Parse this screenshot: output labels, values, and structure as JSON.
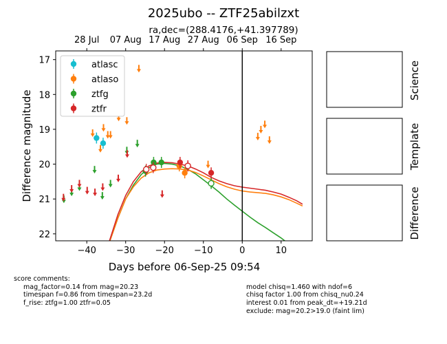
{
  "title": "2025ubo -- ZTF25abilzxt",
  "subtitle": "ra,dec=(288.4176,+41.397789)",
  "chart_data": {
    "type": "scatter",
    "xlabel": "Days before 06-Sep-25 09:54",
    "ylabel": "Difference magnitude",
    "xlim": [
      -48,
      18
    ],
    "ylim": [
      22.2,
      16.75
    ],
    "y_inverted": true,
    "x_ticks": [
      -40,
      -30,
      -20,
      -10,
      0,
      10
    ],
    "y_ticks": [
      17,
      18,
      19,
      20,
      21,
      22
    ],
    "top_axis_dates": [
      {
        "label": "28 Jul",
        "x": -40
      },
      {
        "label": "07 Aug",
        "x": -30
      },
      {
        "label": "17 Aug",
        "x": -20
      },
      {
        "label": "27 Aug",
        "x": -10
      },
      {
        "label": "06 Sep",
        "x": 0
      },
      {
        "label": "16 Sep",
        "x": 10
      }
    ],
    "vline_x": 0,
    "legend_position": "upper-left",
    "grid": false,
    "series": [
      {
        "name": "atlasc",
        "color": "#17becf",
        "detections": [
          {
            "x": -37.5,
            "y": 19.25
          },
          {
            "x": -35.8,
            "y": 19.4
          }
        ],
        "upper_limits": []
      },
      {
        "name": "atlaso",
        "color": "#ff7f0e",
        "detections": [
          {
            "x": -16.2,
            "y": 20.05
          },
          {
            "x": -14.8,
            "y": 20.25
          }
        ],
        "upper_limits": [
          {
            "x": -38.5,
            "y": 19.1
          },
          {
            "x": -36.5,
            "y": 19.55
          },
          {
            "x": -35.7,
            "y": 18.95
          },
          {
            "x": -34.6,
            "y": 19.15
          },
          {
            "x": -33.9,
            "y": 19.15
          },
          {
            "x": -31.8,
            "y": 18.65
          },
          {
            "x": -29.7,
            "y": 18.75
          },
          {
            "x": -26.6,
            "y": 17.25
          },
          {
            "x": -8.8,
            "y": 20.0
          },
          {
            "x": 4.0,
            "y": 19.2
          },
          {
            "x": 4.8,
            "y": 19.0
          },
          {
            "x": 5.8,
            "y": 18.85
          },
          {
            "x": 7.0,
            "y": 19.3
          }
        ]
      },
      {
        "name": "ztfg",
        "color": "#2ca02c",
        "detections": [
          {
            "x": -24.9,
            "y": 20.2
          },
          {
            "x": -22.8,
            "y": 19.95
          },
          {
            "x": -20.8,
            "y": 19.95
          },
          {
            "x": -8.0,
            "y": 20.55
          }
        ],
        "detections_open": [
          {
            "x": -8.0,
            "y": 20.55
          }
        ],
        "upper_limits": [
          {
            "x": -45.9,
            "y": 21.0
          },
          {
            "x": -43.9,
            "y": 20.8
          },
          {
            "x": -41.9,
            "y": 20.65
          },
          {
            "x": -38.0,
            "y": 20.15
          },
          {
            "x": -36.0,
            "y": 20.9
          },
          {
            "x": -33.9,
            "y": 20.55
          },
          {
            "x": -29.7,
            "y": 19.6
          },
          {
            "x": -27.0,
            "y": 19.4
          }
        ]
      },
      {
        "name": "ztfr",
        "color": "#d62728",
        "detections": [
          {
            "x": -16.0,
            "y": 19.95
          },
          {
            "x": -14.0,
            "y": 20.05
          },
          {
            "x": -8.0,
            "y": 20.25
          }
        ],
        "detections_open": [
          {
            "x": -24.7,
            "y": 20.15
          },
          {
            "x": -22.9,
            "y": 20.1
          },
          {
            "x": -14.0,
            "y": 20.05
          }
        ],
        "upper_limits": [
          {
            "x": -46.0,
            "y": 20.95
          },
          {
            "x": -43.9,
            "y": 20.7
          },
          {
            "x": -41.9,
            "y": 20.55
          },
          {
            "x": -39.9,
            "y": 20.75
          },
          {
            "x": -37.9,
            "y": 20.8
          },
          {
            "x": -35.9,
            "y": 20.65
          },
          {
            "x": -31.9,
            "y": 20.4
          },
          {
            "x": -29.6,
            "y": 19.7
          },
          {
            "x": -20.6,
            "y": 20.85
          }
        ]
      }
    ],
    "model_curves": [
      {
        "name": "ztfg",
        "color": "#2ca02c",
        "points": [
          [
            -34.2,
            22.25
          ],
          [
            -32,
            21.55
          ],
          [
            -30,
            21.0
          ],
          [
            -28,
            20.6
          ],
          [
            -26,
            20.3
          ],
          [
            -24,
            20.1
          ],
          [
            -22,
            20.0
          ],
          [
            -20,
            19.98
          ],
          [
            -18,
            20.0
          ],
          [
            -16,
            20.05
          ],
          [
            -14,
            20.15
          ],
          [
            -12,
            20.28
          ],
          [
            -10,
            20.45
          ],
          [
            -8,
            20.62
          ],
          [
            -6,
            20.8
          ],
          [
            -4,
            21.0
          ],
          [
            -2,
            21.18
          ],
          [
            0,
            21.35
          ],
          [
            2,
            21.52
          ],
          [
            4,
            21.68
          ],
          [
            6,
            21.82
          ],
          [
            8,
            21.97
          ],
          [
            10,
            22.12
          ],
          [
            11.5,
            22.25
          ]
        ]
      },
      {
        "name": "atlaso",
        "color": "#ff7f0e",
        "points": [
          [
            -34.2,
            22.25
          ],
          [
            -32,
            21.55
          ],
          [
            -30,
            21.0
          ],
          [
            -28,
            20.65
          ],
          [
            -26,
            20.4
          ],
          [
            -24,
            20.25
          ],
          [
            -22,
            20.17
          ],
          [
            -20,
            20.14
          ],
          [
            -18,
            20.13
          ],
          [
            -16,
            20.14
          ],
          [
            -14,
            20.17
          ],
          [
            -12,
            20.24
          ],
          [
            -10,
            20.34
          ],
          [
            -8,
            20.45
          ],
          [
            -6,
            20.56
          ],
          [
            -4,
            20.65
          ],
          [
            -2,
            20.72
          ],
          [
            0,
            20.77
          ],
          [
            2,
            20.8
          ],
          [
            4,
            20.82
          ],
          [
            6,
            20.84
          ],
          [
            8,
            20.88
          ],
          [
            10,
            20.94
          ],
          [
            12,
            21.02
          ],
          [
            14,
            21.12
          ],
          [
            15.5,
            21.2
          ]
        ]
      },
      {
        "name": "ztfr",
        "color": "#d62728",
        "points": [
          [
            -34.3,
            22.25
          ],
          [
            -32,
            21.45
          ],
          [
            -30,
            20.9
          ],
          [
            -28,
            20.5
          ],
          [
            -26,
            20.22
          ],
          [
            -24,
            20.05
          ],
          [
            -22,
            19.97
          ],
          [
            -20,
            19.95
          ],
          [
            -18,
            19.96
          ],
          [
            -16,
            20.0
          ],
          [
            -14,
            20.05
          ],
          [
            -12,
            20.14
          ],
          [
            -10,
            20.25
          ],
          [
            -8,
            20.38
          ],
          [
            -6,
            20.48
          ],
          [
            -4,
            20.56
          ],
          [
            -2,
            20.62
          ],
          [
            0,
            20.66
          ],
          [
            2,
            20.69
          ],
          [
            4,
            20.72
          ],
          [
            6,
            20.75
          ],
          [
            8,
            20.8
          ],
          [
            10,
            20.86
          ],
          [
            12,
            20.95
          ],
          [
            14,
            21.05
          ],
          [
            15.5,
            21.15
          ]
        ]
      }
    ]
  },
  "side_panels": [
    "Science",
    "Template",
    "Difference"
  ],
  "comments": {
    "header": "score comments:",
    "left": [
      "mag_factor=0.14 from mag=20.23",
      "timespan f=0.86 from timespan=23.2d",
      "f_rise: ztfg=1.00 ztfr=0.05"
    ],
    "right": [
      "model chisq=1.460 with ndof=6",
      "chisq factor 1.00 from chisq_nu0.24",
      "interest 0.01 from peak_dt=+19.21d",
      "exclude: mag=20.2>19.0 (faint lim)"
    ]
  }
}
